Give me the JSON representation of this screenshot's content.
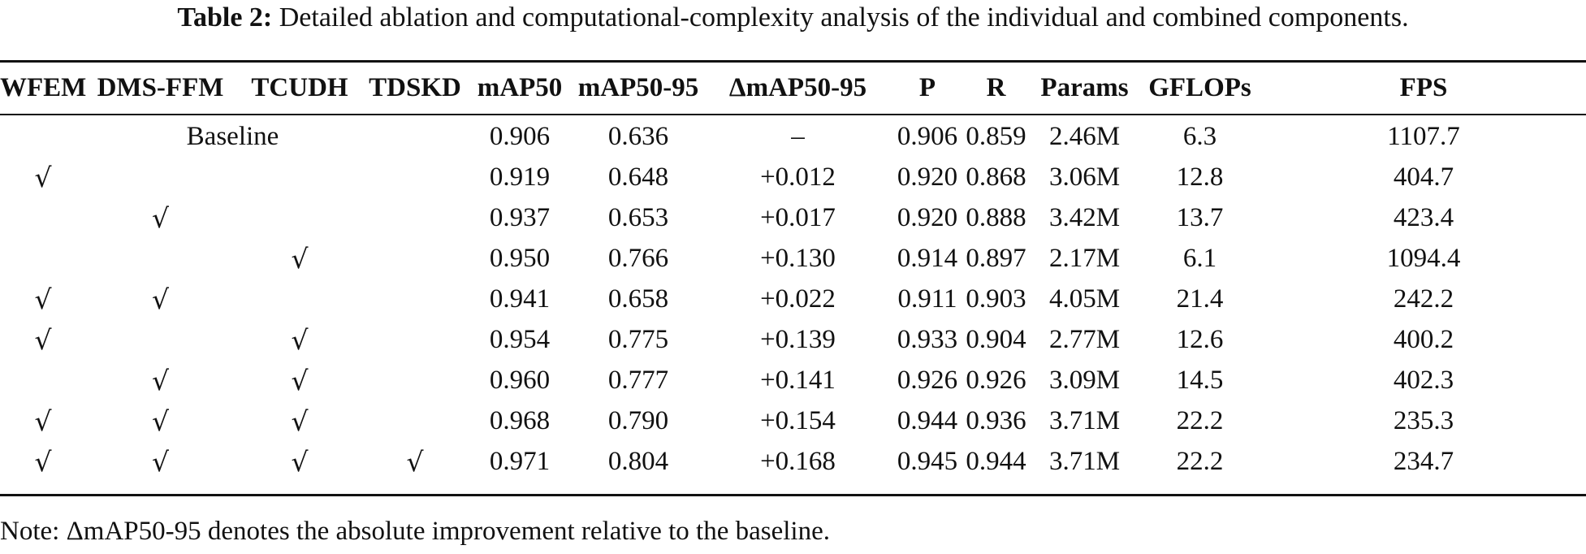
{
  "caption": {
    "label": "Table 2:",
    "text": " Detailed ablation and computational-complexity analysis of the individual and combined components."
  },
  "table": {
    "headers": [
      "WFEM",
      "DMS-FFM",
      "TCUDH",
      "TDSKD",
      "mAP50",
      "mAP50-95",
      "ΔmAP50-95",
      "P",
      "R",
      "Params",
      "GFLOPs",
      "FPS"
    ],
    "check_symbol": "√",
    "baseline": {
      "label": "Baseline",
      "values": [
        "0.906",
        "0.636",
        "–",
        "0.906",
        "0.859",
        "2.46M",
        "6.3",
        "1107.7"
      ]
    },
    "rows": [
      {
        "checks": [
          "√",
          "",
          "",
          ""
        ],
        "values": [
          "0.919",
          "0.648",
          "+0.012",
          "0.920",
          "0.868",
          "3.06M",
          "12.8",
          "404.7"
        ]
      },
      {
        "checks": [
          "",
          "√",
          "",
          ""
        ],
        "values": [
          "0.937",
          "0.653",
          "+0.017",
          "0.920",
          "0.888",
          "3.42M",
          "13.7",
          "423.4"
        ]
      },
      {
        "checks": [
          "",
          "",
          "√",
          ""
        ],
        "values": [
          "0.950",
          "0.766",
          "+0.130",
          "0.914",
          "0.897",
          "2.17M",
          "6.1",
          "1094.4"
        ]
      },
      {
        "checks": [
          "√",
          "√",
          "",
          ""
        ],
        "values": [
          "0.941",
          "0.658",
          "+0.022",
          "0.911",
          "0.903",
          "4.05M",
          "21.4",
          "242.2"
        ]
      },
      {
        "checks": [
          "√",
          "",
          "√",
          ""
        ],
        "values": [
          "0.954",
          "0.775",
          "+0.139",
          "0.933",
          "0.904",
          "2.77M",
          "12.6",
          "400.2"
        ]
      },
      {
        "checks": [
          "",
          "√",
          "√",
          ""
        ],
        "values": [
          "0.960",
          "0.777",
          "+0.141",
          "0.926",
          "0.926",
          "3.09M",
          "14.5",
          "402.3"
        ]
      },
      {
        "checks": [
          "√",
          "√",
          "√",
          ""
        ],
        "values": [
          "0.968",
          "0.790",
          "+0.154",
          "0.944",
          "0.936",
          "3.71M",
          "22.2",
          "235.3"
        ]
      },
      {
        "checks": [
          "√",
          "√",
          "√",
          "√"
        ],
        "values": [
          "0.971",
          "0.804",
          "+0.168",
          "0.945",
          "0.944",
          "3.71M",
          "22.2",
          "234.7"
        ]
      }
    ]
  },
  "note": "Note: ΔmAP50-95 denotes the absolute improvement relative to the baseline."
}
